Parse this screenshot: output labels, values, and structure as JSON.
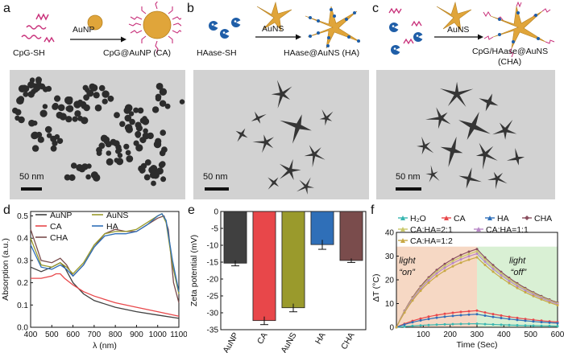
{
  "panels": {
    "a": {
      "letter": "a",
      "reagent": "CpG-SH",
      "arrow_label": "AuNP",
      "product": "CpG@AuNP (CA)",
      "scale": "50 nm"
    },
    "b": {
      "letter": "b",
      "reagent": "HAase-SH",
      "arrow_label": "AuNS",
      "product": "HAase@AuNS (HA)",
      "scale": "50 nm"
    },
    "c": {
      "letter": "c",
      "arrow_label": "AuNS",
      "product_line1": "CpG/HAase@AuNS",
      "product_line2": "(CHA)",
      "scale": "50 nm"
    },
    "d": {
      "letter": "d"
    },
    "e": {
      "letter": "e"
    },
    "f": {
      "letter": "f"
    }
  },
  "colors": {
    "AuNP": "#404040",
    "CA": "#e8474a",
    "AuNS": "#9a9a2c",
    "HA": "#2f6fb8",
    "CHA": "#7a4c4c",
    "H2O": "#38b6b0",
    "CA_HA_2_1": "#c9c86a",
    "CA_HA_1_1": "#b888c8",
    "CA_HA_1_2": "#c8a845",
    "CHA_f": "#8a4e5e",
    "gold": "#e0a53a",
    "strand": "#c8307a"
  },
  "chart_data": [
    {
      "id": "d",
      "type": "line",
      "xlabel": "λ (nm)",
      "ylabel": "Absorption (a.u.)",
      "xlim": [
        400,
        1100
      ],
      "ylim": [
        0.0,
        0.52
      ],
      "xticks": [
        "400",
        "500",
        "600",
        "700",
        "800",
        "900",
        "1000",
        "1100"
      ],
      "yticks": [
        "0.0",
        "0.1",
        "0.2",
        "0.3",
        "0.4",
        "0.5"
      ],
      "legend": [
        "AuNP",
        "AuNS",
        "CA",
        "HA",
        "CHA"
      ],
      "series": [
        {
          "name": "AuNP",
          "x": [
            400,
            450,
            500,
            520,
            540,
            560,
            600,
            650,
            700,
            800,
            900,
            1000,
            1100
          ],
          "y": [
            0.27,
            0.25,
            0.27,
            0.28,
            0.29,
            0.27,
            0.2,
            0.15,
            0.12,
            0.09,
            0.07,
            0.055,
            0.04
          ]
        },
        {
          "name": "CA",
          "x": [
            400,
            450,
            500,
            520,
            540,
            560,
            600,
            650,
            700,
            800,
            900,
            1000,
            1100
          ],
          "y": [
            0.22,
            0.22,
            0.23,
            0.24,
            0.24,
            0.22,
            0.19,
            0.16,
            0.14,
            0.11,
            0.09,
            0.07,
            0.05
          ]
        },
        {
          "name": "CHA",
          "x": [
            400,
            450,
            500,
            540,
            570,
            600,
            650,
            700,
            750,
            800,
            850,
            900,
            950,
            1000,
            1030,
            1050,
            1075,
            1100
          ],
          "y": [
            0.44,
            0.3,
            0.29,
            0.31,
            0.28,
            0.23,
            0.28,
            0.36,
            0.42,
            0.44,
            0.43,
            0.43,
            0.46,
            0.49,
            0.5,
            0.44,
            0.2,
            0.11
          ]
        },
        {
          "name": "AuNS",
          "x": [
            400,
            450,
            500,
            540,
            570,
            600,
            650,
            700,
            750,
            800,
            850,
            900,
            950,
            1000,
            1020,
            1040,
            1070,
            1100
          ],
          "y": [
            0.4,
            0.28,
            0.27,
            0.29,
            0.27,
            0.24,
            0.29,
            0.37,
            0.42,
            0.43,
            0.43,
            0.44,
            0.47,
            0.5,
            0.51,
            0.47,
            0.28,
            0.15
          ]
        },
        {
          "name": "HA",
          "x": [
            400,
            450,
            500,
            540,
            570,
            600,
            650,
            700,
            750,
            800,
            850,
            900,
            950,
            1000,
            1020,
            1040,
            1070,
            1100
          ],
          "y": [
            0.37,
            0.27,
            0.26,
            0.28,
            0.26,
            0.23,
            0.28,
            0.36,
            0.41,
            0.42,
            0.42,
            0.43,
            0.46,
            0.5,
            0.51,
            0.48,
            0.3,
            0.16
          ]
        }
      ]
    },
    {
      "id": "e",
      "type": "bar",
      "ylabel": "Zeta potential (mV)",
      "ylim": [
        -35,
        0
      ],
      "yticks": [
        "0",
        "-5",
        "-10",
        "-15",
        "-20",
        "-25",
        "-30",
        "-35"
      ],
      "categories": [
        "AuNP",
        "CA",
        "AuNS",
        "HA",
        "CHA"
      ],
      "values": [
        -15.3,
        -32.3,
        -28.5,
        -9.8,
        -14.5
      ],
      "errors": [
        0.8,
        1.2,
        1.2,
        1.4,
        0.6
      ]
    },
    {
      "id": "f",
      "type": "line",
      "xlabel": "Time (Sec)",
      "ylabel": "ΔT (°C)",
      "xlim": [
        0,
        600
      ],
      "ylim": [
        0,
        40
      ],
      "xticks": [
        "100",
        "200",
        "300",
        "400",
        "500",
        "600"
      ],
      "yticks": [
        "0",
        "10",
        "20",
        "30",
        "40"
      ],
      "legend": [
        "H₂O",
        "CA",
        "HA",
        "CHA",
        "CA:HA=2:1",
        "CA:HA=1:1",
        "CA:HA=1:2"
      ],
      "annotations": {
        "on_1": "light",
        "on_2": "“on”",
        "off_1": "light",
        "off_2": "“off”"
      },
      "series": [
        {
          "name": "H₂O",
          "peak": 1.5
        },
        {
          "name": "CA",
          "peak": 7.0
        },
        {
          "name": "HA",
          "peak": 5.5
        },
        {
          "name": "CHA",
          "peak": 33.0
        },
        {
          "name": "CA:HA=2:1",
          "peak": 32.0
        },
        {
          "name": "CA:HA=1:1",
          "peak": 31.0
        },
        {
          "name": "CA:HA=1:2",
          "peak": 29.5
        }
      ]
    }
  ]
}
